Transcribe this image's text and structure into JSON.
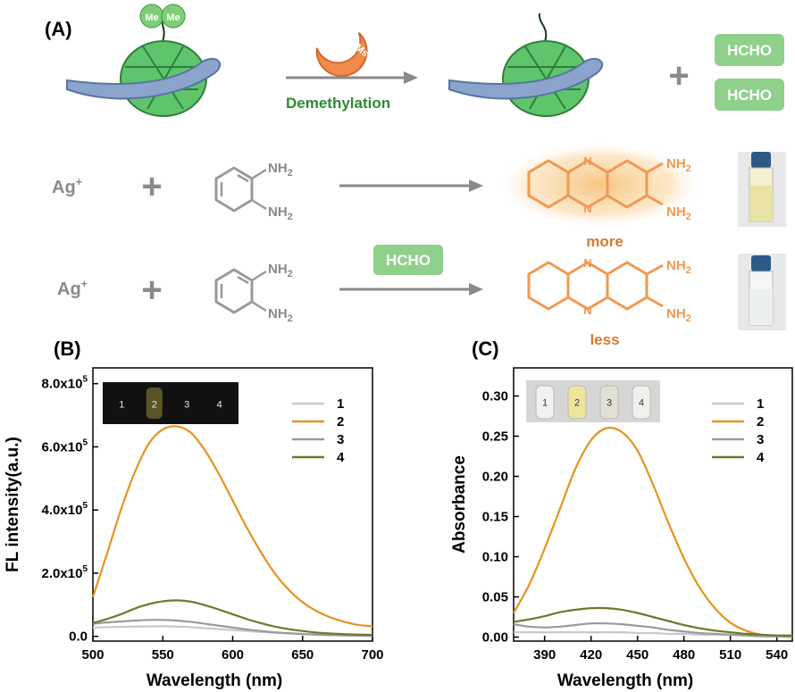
{
  "panel_a": {
    "label": "(A)",
    "me1": "Me",
    "me2": "Me",
    "hdms": "HDMs",
    "demethylation": "Demethylation",
    "hcho_top": "HCHO",
    "hcho_bottom": "HCHO",
    "plus_top": "+",
    "row1": {
      "ag": "Ag",
      "ag_sup": "+",
      "plus": "+",
      "nh2_a": "NH",
      "nh2_b": "NH",
      "sub": "2",
      "prod_nh2_a": "NH",
      "prod_nh2_b": "NH",
      "result": "more"
    },
    "row2": {
      "ag": "Ag",
      "ag_sup": "+",
      "plus": "+",
      "nh2_a": "NH",
      "nh2_b": "NH",
      "sub": "2",
      "reagent": "HCHO",
      "prod_nh2_a": "NH",
      "prod_nh2_b": "NH",
      "result": "less"
    },
    "colors": {
      "protein": "#5fc56d",
      "dna": "#7e98c2",
      "enzyme": "#f28a4b",
      "product": "#ef9a52",
      "label_green": "#2e8b2e",
      "label_orange": "#d9792e"
    }
  },
  "chart_data": [
    {
      "panel": "(B)",
      "type": "line",
      "xlabel": "Wavelength (nm)",
      "ylabel": "FL intensity(a.u.)",
      "xlim": [
        500,
        700
      ],
      "ylim": [
        -15000,
        850000
      ],
      "x_ticks": [
        "500",
        "550",
        "600",
        "650",
        "700"
      ],
      "y_ticks": [
        {
          "value": 0,
          "mant": "0.0",
          "exp": ""
        },
        {
          "value": 200000,
          "mant": "2.0x10",
          "exp": "5"
        },
        {
          "value": 400000,
          "mant": "4.0x10",
          "exp": "5"
        },
        {
          "value": 600000,
          "mant": "6.0x10",
          "exp": "5"
        },
        {
          "value": 800000,
          "mant": "8.0x10",
          "exp": "5"
        }
      ],
      "legend": "top-right",
      "inset_labels": [
        "1",
        "2",
        "3",
        "4"
      ],
      "x": [
        500,
        510,
        520,
        530,
        540,
        550,
        560,
        570,
        580,
        590,
        600,
        610,
        620,
        630,
        640,
        650,
        660,
        670,
        680,
        690,
        700
      ],
      "series": [
        {
          "name": "1",
          "color": "#c8c8c8",
          "values": [
            28000,
            29000,
            30000,
            31000,
            31500,
            32000,
            31000,
            29000,
            26000,
            23000,
            20000,
            17000,
            14000,
            11500,
            9000,
            7000,
            5500,
            4000,
            3000,
            2200,
            1500
          ]
        },
        {
          "name": "2",
          "color": "#e8921f",
          "values": [
            125000,
            260000,
            400000,
            520000,
            610000,
            655000,
            665000,
            645000,
            590000,
            515000,
            430000,
            345000,
            268000,
            200000,
            148000,
            108000,
            80000,
            60000,
            46000,
            36000,
            32000
          ]
        },
        {
          "name": "3",
          "color": "#9a9a9a",
          "values": [
            40000,
            44000,
            47000,
            50000,
            52000,
            52000,
            50000,
            46000,
            40000,
            34000,
            28000,
            22000,
            17000,
            13000,
            10000,
            7500,
            5500,
            4000,
            3000,
            2200,
            1500
          ]
        },
        {
          "name": "4",
          "color": "#6b7a2a",
          "values": [
            42000,
            55000,
            70000,
            88000,
            102000,
            111000,
            114000,
            110000,
            99000,
            85000,
            70000,
            55000,
            42000,
            31000,
            23000,
            17000,
            12000,
            9000,
            7000,
            5500,
            4500
          ]
        }
      ]
    },
    {
      "panel": "(C)",
      "type": "line",
      "xlabel": "Wavelength (nm)",
      "ylabel": "Absorbance",
      "xlim": [
        370,
        550
      ],
      "ylim": [
        -0.005,
        0.335
      ],
      "x_ticks": [
        "390",
        "420",
        "450",
        "480",
        "510",
        "540"
      ],
      "y_ticks": [
        {
          "value": 0.0,
          "mant": "0.00",
          "exp": ""
        },
        {
          "value": 0.05,
          "mant": "0.05",
          "exp": ""
        },
        {
          "value": 0.1,
          "mant": "0.10",
          "exp": ""
        },
        {
          "value": 0.15,
          "mant": "0.15",
          "exp": ""
        },
        {
          "value": 0.2,
          "mant": "0.20",
          "exp": ""
        },
        {
          "value": 0.25,
          "mant": "0.25",
          "exp": ""
        },
        {
          "value": 0.3,
          "mant": "0.30",
          "exp": ""
        }
      ],
      "legend": "top-right",
      "inset_labels": [
        "1",
        "2",
        "3",
        "4"
      ],
      "x": [
        370,
        380,
        390,
        400,
        410,
        420,
        430,
        440,
        450,
        460,
        470,
        480,
        490,
        500,
        510,
        520,
        530,
        540,
        550
      ],
      "series": [
        {
          "name": "1",
          "color": "#c8c8c8",
          "values": [
            0.006,
            0.006,
            0.006,
            0.006,
            0.006,
            0.006,
            0.006,
            0.006,
            0.005,
            0.005,
            0.004,
            0.004,
            0.003,
            0.003,
            0.003,
            0.002,
            0.002,
            0.002,
            0.002
          ]
        },
        {
          "name": "2",
          "color": "#e8921f",
          "values": [
            0.03,
            0.065,
            0.11,
            0.16,
            0.21,
            0.245,
            0.26,
            0.255,
            0.232,
            0.19,
            0.142,
            0.098,
            0.062,
            0.036,
            0.018,
            0.008,
            0.003,
            0.001,
            0.0
          ]
        },
        {
          "name": "3",
          "color": "#9a9a9a",
          "values": [
            0.016,
            0.013,
            0.012,
            0.013,
            0.015,
            0.017,
            0.017,
            0.016,
            0.014,
            0.012,
            0.009,
            0.007,
            0.005,
            0.004,
            0.003,
            0.002,
            0.001,
            0.001,
            0.001
          ]
        },
        {
          "name": "4",
          "color": "#6b7a2a",
          "values": [
            0.019,
            0.022,
            0.026,
            0.031,
            0.034,
            0.036,
            0.036,
            0.034,
            0.03,
            0.025,
            0.02,
            0.015,
            0.011,
            0.008,
            0.006,
            0.004,
            0.003,
            0.002,
            0.002
          ]
        }
      ]
    }
  ]
}
